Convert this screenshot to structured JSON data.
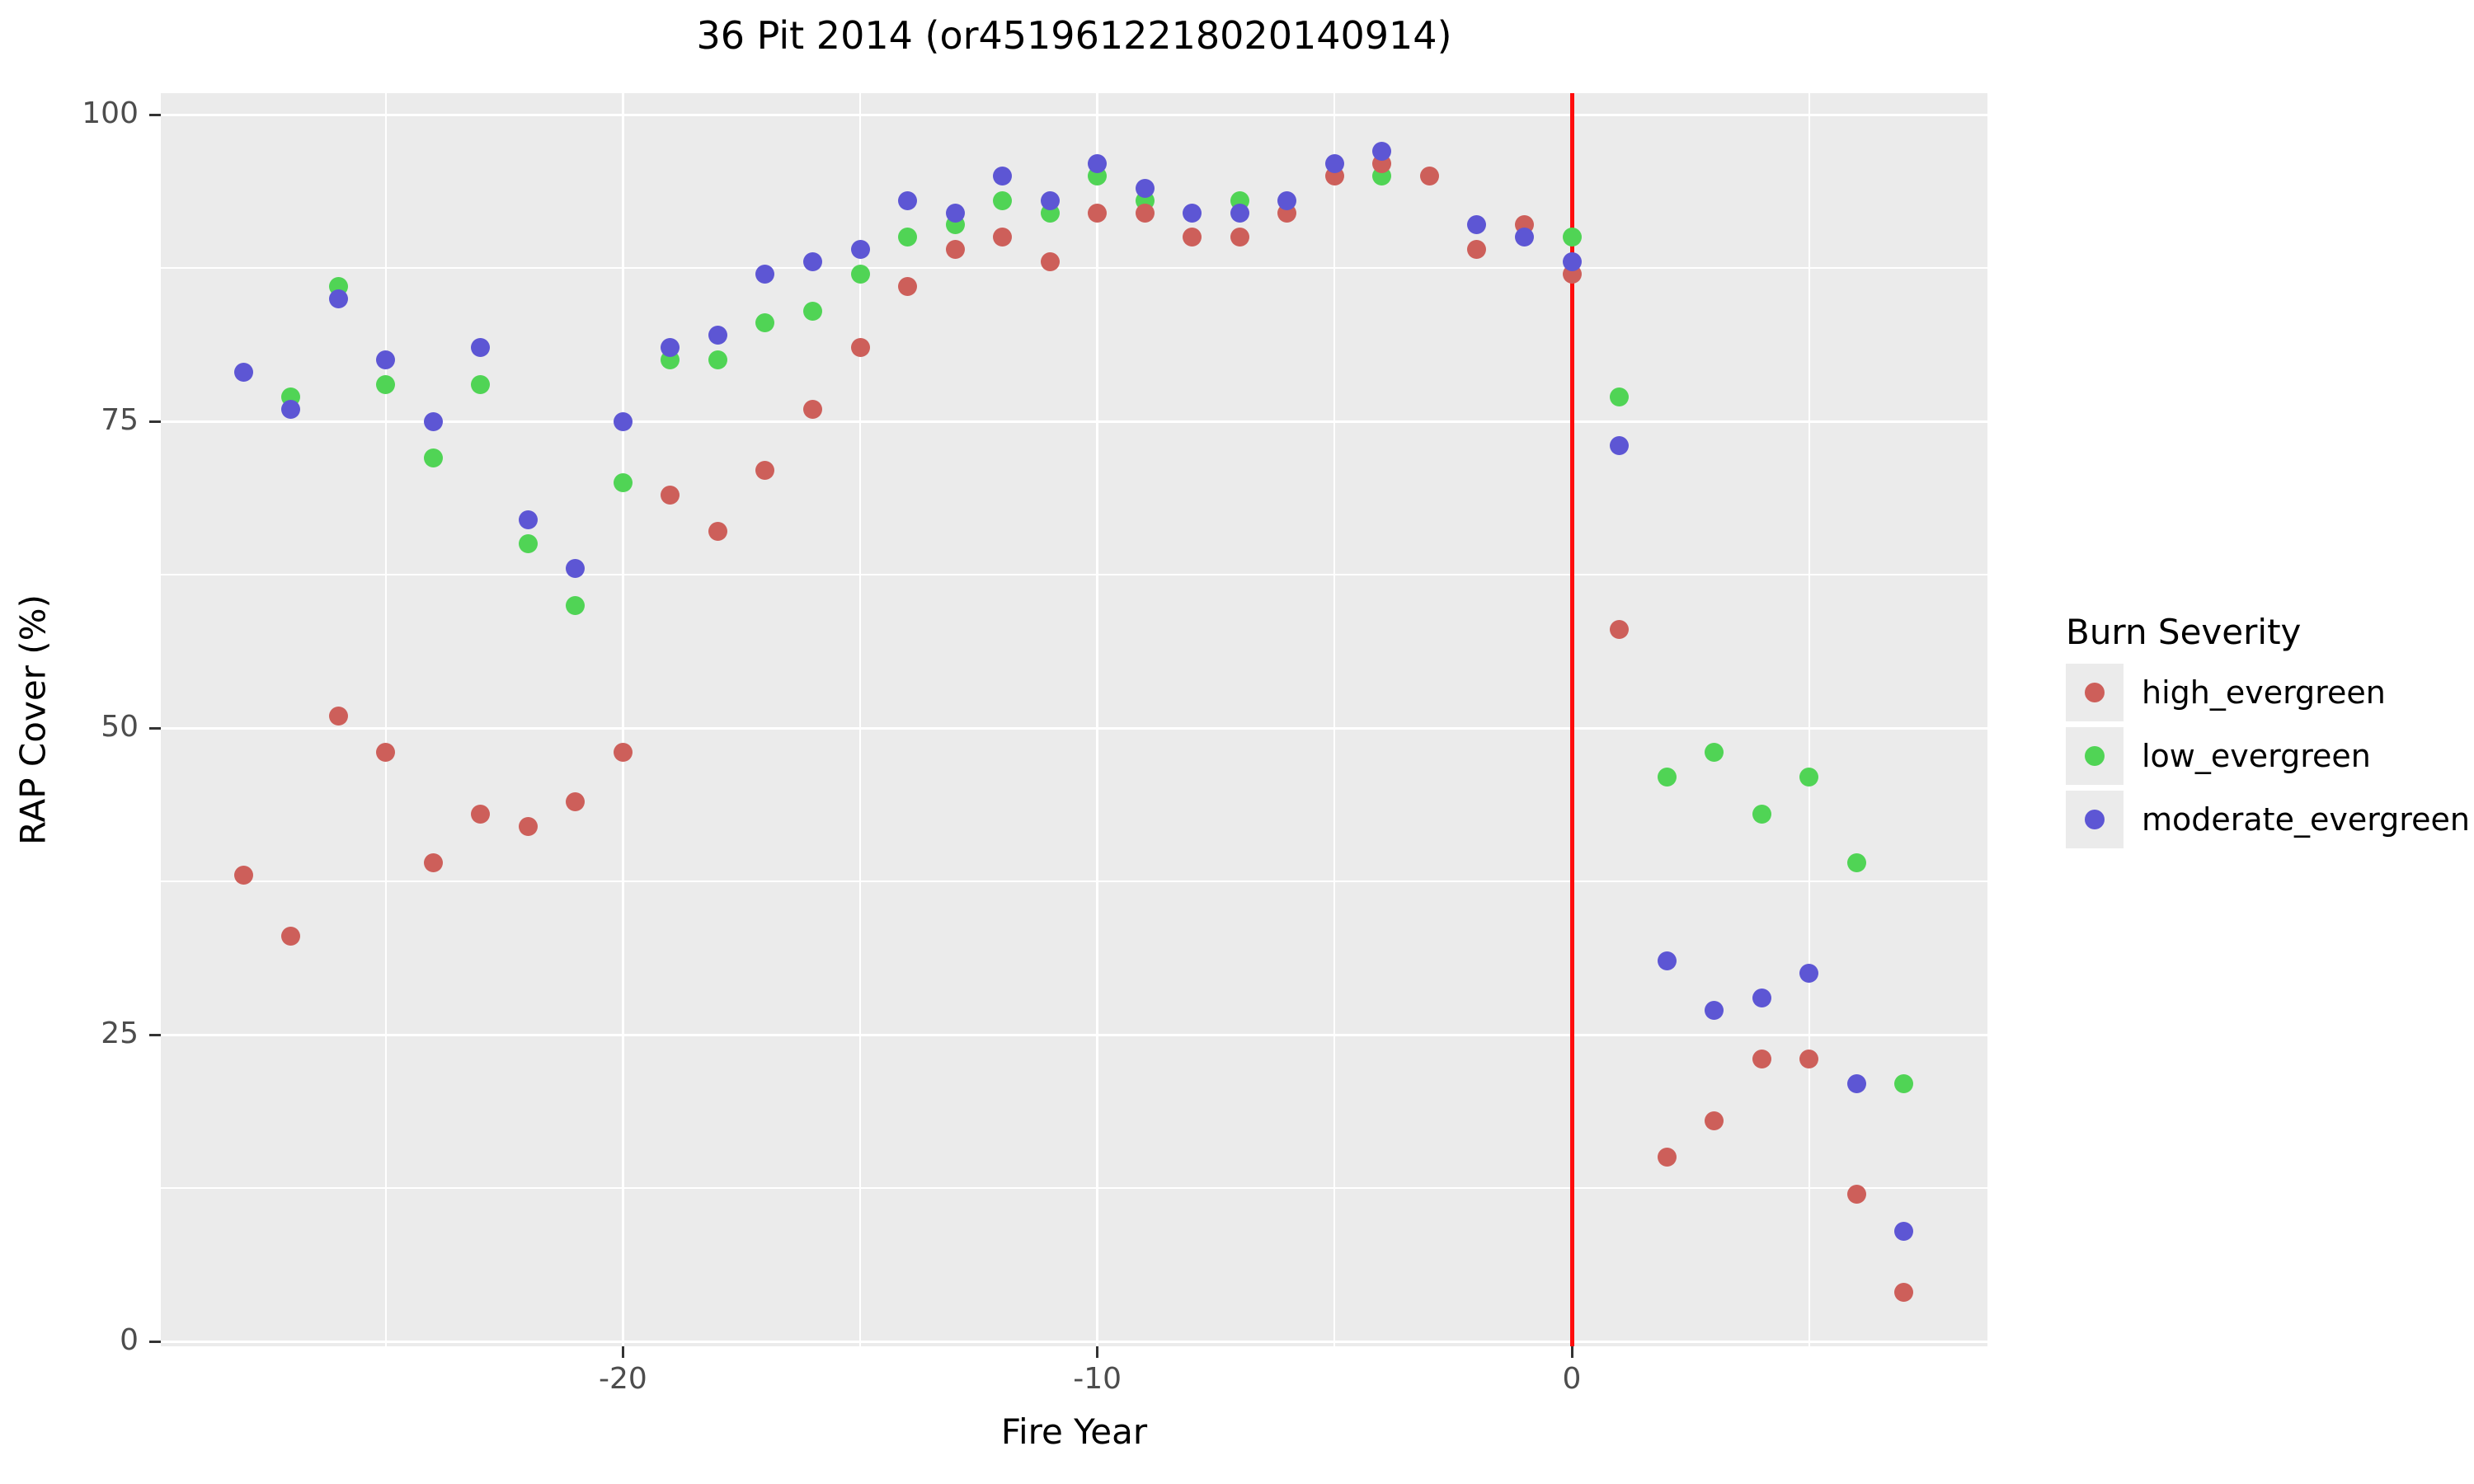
{
  "title": "36 Pit 2014 (or4519612218020140914)",
  "x_axis": {
    "label": "Fire Year",
    "tick_labels": [
      "-20",
      "-10",
      "0"
    ]
  },
  "y_axis": {
    "label": "RAP Cover (%)",
    "tick_labels": [
      "0",
      "25",
      "50",
      "75",
      "100"
    ]
  },
  "legend": {
    "title": "Burn Severity",
    "items": [
      {
        "label": "high_evergreen",
        "color": "#cd5f5a"
      },
      {
        "label": "low_evergreen",
        "color": "#50d455"
      },
      {
        "label": "moderate_evergreen",
        "color": "#5d56d4"
      }
    ]
  },
  "colors": {
    "panel_background": "#ebebeb",
    "gridline": "#ffffff",
    "tick_text": "#4d4d4d",
    "axis_text": "#000000",
    "fire_line": "#ff0d0d",
    "high_evergreen": "#cd5f5a",
    "low_evergreen": "#50d455",
    "moderate_evergreen": "#5d56d4"
  },
  "chart_data": {
    "type": "scatter",
    "title": "36 Pit 2014 (or4519612218020140914)",
    "xlabel": "Fire Year",
    "ylabel": "RAP Cover (%)",
    "xlim": [
      -29.75,
      8.75
    ],
    "ylim": [
      -0.4,
      101.7
    ],
    "x_major_ticks": [
      -20,
      -10,
      0
    ],
    "x_minor_gridlines": [
      -25,
      -15,
      -5,
      5
    ],
    "y_major_ticks": [
      0,
      25,
      50,
      75,
      100
    ],
    "y_minor_gridlines": [
      12.5,
      37.5,
      62.5,
      87.5
    ],
    "grid": "on",
    "legend_position": "right",
    "vline": {
      "x": 0,
      "color": "#ff0d0d"
    },
    "series": [
      {
        "name": "low_evergreen",
        "color": "#50d455",
        "points": [
          [
            -27,
            77
          ],
          [
            -26,
            86
          ],
          [
            -25,
            78
          ],
          [
            -24,
            72
          ],
          [
            -23,
            78
          ],
          [
            -22,
            65
          ],
          [
            -21,
            60
          ],
          [
            -20,
            70
          ],
          [
            -19,
            80
          ],
          [
            -18,
            80
          ],
          [
            -17,
            83
          ],
          [
            -16,
            84
          ],
          [
            -15,
            87
          ],
          [
            -14,
            90
          ],
          [
            -13,
            91
          ],
          [
            -12,
            93
          ],
          [
            -11,
            92
          ],
          [
            -10,
            95
          ],
          [
            -9,
            93
          ],
          [
            -7,
            93
          ],
          [
            -4,
            95
          ],
          [
            0,
            90
          ],
          [
            1,
            77
          ],
          [
            2,
            46
          ],
          [
            3,
            48
          ],
          [
            4,
            43
          ],
          [
            5,
            46
          ],
          [
            6,
            39
          ],
          [
            7,
            21
          ]
        ]
      },
      {
        "name": "high_evergreen",
        "color": "#cd5f5a",
        "points": [
          [
            -28,
            38
          ],
          [
            -27,
            33
          ],
          [
            -26,
            51
          ],
          [
            -25,
            48
          ],
          [
            -24,
            39
          ],
          [
            -23,
            43
          ],
          [
            -22,
            42
          ],
          [
            -21,
            44
          ],
          [
            -20,
            48
          ],
          [
            -19,
            69
          ],
          [
            -18,
            66
          ],
          [
            -17,
            71
          ],
          [
            -16,
            76
          ],
          [
            -15,
            81
          ],
          [
            -14,
            86
          ],
          [
            -13,
            89
          ],
          [
            -12,
            90
          ],
          [
            -11,
            88
          ],
          [
            -10,
            92
          ],
          [
            -9,
            92
          ],
          [
            -8,
            90
          ],
          [
            -7,
            90
          ],
          [
            -6,
            92
          ],
          [
            -5,
            95
          ],
          [
            -4,
            96
          ],
          [
            -3,
            95
          ],
          [
            -2,
            89
          ],
          [
            -1,
            91
          ],
          [
            0,
            87
          ],
          [
            1,
            58
          ],
          [
            2,
            15
          ],
          [
            3,
            18
          ],
          [
            4,
            23
          ],
          [
            5,
            23
          ],
          [
            6,
            12
          ],
          [
            7,
            4
          ]
        ]
      },
      {
        "name": "moderate_evergreen",
        "color": "#5d56d4",
        "points": [
          [
            -28,
            79
          ],
          [
            -27,
            76
          ],
          [
            -26,
            85
          ],
          [
            -25,
            80
          ],
          [
            -24,
            75
          ],
          [
            -23,
            81
          ],
          [
            -22,
            67
          ],
          [
            -21,
            63
          ],
          [
            -20,
            75
          ],
          [
            -19,
            81
          ],
          [
            -18,
            82
          ],
          [
            -17,
            87
          ],
          [
            -16,
            88
          ],
          [
            -15,
            89
          ],
          [
            -14,
            93
          ],
          [
            -13,
            92
          ],
          [
            -12,
            95
          ],
          [
            -11,
            93
          ],
          [
            -10,
            96
          ],
          [
            -9,
            94
          ],
          [
            -8,
            92
          ],
          [
            -7,
            92
          ],
          [
            -6,
            93
          ],
          [
            -5,
            96
          ],
          [
            -4,
            97
          ],
          [
            -2,
            91
          ],
          [
            -1,
            90
          ],
          [
            0,
            88
          ],
          [
            1,
            73
          ],
          [
            2,
            31
          ],
          [
            3,
            27
          ],
          [
            4,
            28
          ],
          [
            5,
            30
          ],
          [
            6,
            21
          ],
          [
            7,
            9
          ]
        ]
      }
    ]
  }
}
